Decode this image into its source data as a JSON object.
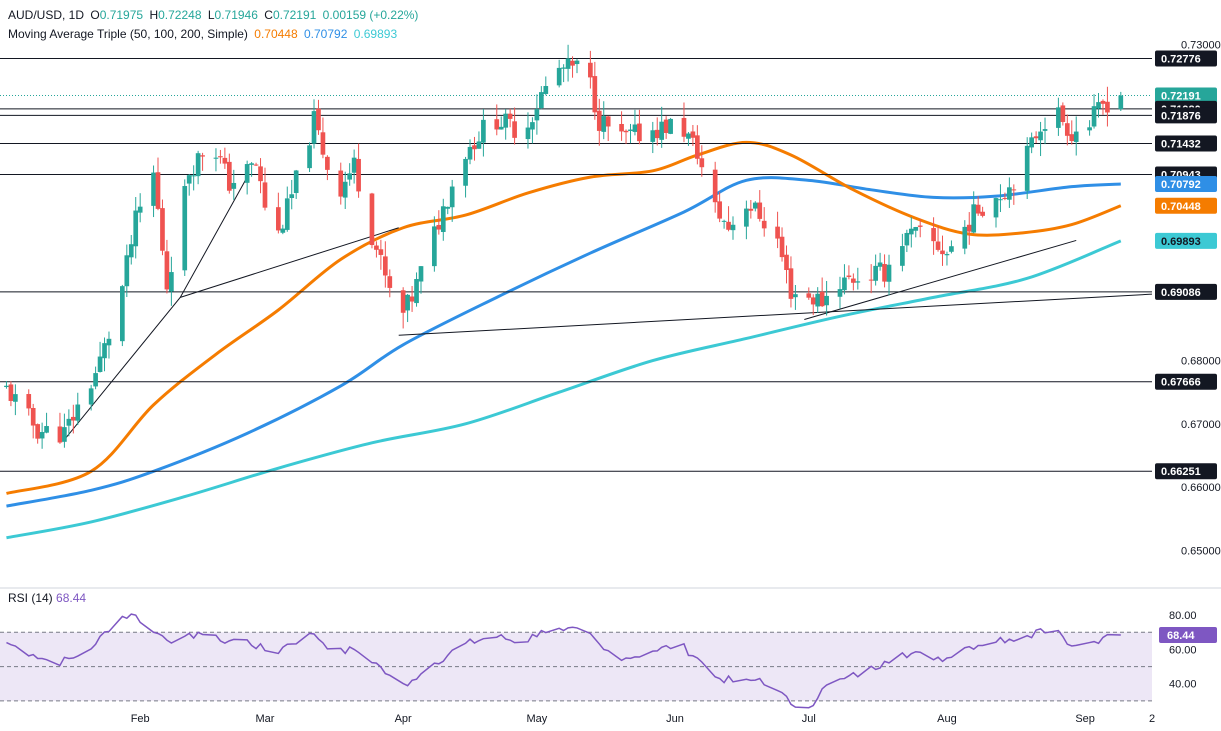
{
  "header": {
    "symbol": "AUD/USD, 1D",
    "open_label": "O",
    "open": "0.71975",
    "high_label": "H",
    "high": "0.72248",
    "low_label": "L",
    "low": "0.71946",
    "close_label": "C",
    "close": "0.72191",
    "change": "0.00159 (+0.22%)",
    "ma_title": "Moving Average Triple (50, 100, 200, Simple)",
    "ma50_value": "0.70448",
    "ma100_value": "0.70792",
    "ma200_value": "0.69893",
    "rsi_title": "RSI (14)",
    "rsi_value": "68.44"
  },
  "colors": {
    "up": "#26a69a",
    "down": "#ef5350",
    "ma50": "#f57c00",
    "ma100": "#2f8fe6",
    "ma200": "#3cc9d4",
    "rsi": "#7e57c2",
    "rsi_band": "#ede7f6",
    "last_price": "#26a69a"
  },
  "chart_data": {
    "type": "candlestick",
    "ylim": [
      0.645,
      0.731
    ],
    "x_ticks": [
      "Feb",
      "Mar",
      "Apr",
      "May",
      "Jun",
      "Jul",
      "Aug",
      "Sep",
      "2"
    ],
    "y_ticks": [
      "0.73000",
      "0.68000",
      "0.67000",
      "0.66000",
      "0.65000"
    ],
    "price_labels": [
      {
        "value": 0.72776,
        "text": "0.72776",
        "style": "dark"
      },
      {
        "value": 0.72191,
        "text": "0.72191",
        "style": "last"
      },
      {
        "value": 0.7198,
        "text": "0.71980",
        "style": "dark"
      },
      {
        "value": 0.71876,
        "text": "0.71876",
        "style": "dark"
      },
      {
        "value": 0.71432,
        "text": "0.71432",
        "style": "dark"
      },
      {
        "value": 0.70943,
        "text": "0.70943",
        "style": "dark"
      },
      {
        "value": 0.70792,
        "text": "0.70792",
        "style": "ma100"
      },
      {
        "value": 0.70448,
        "text": "0.70448",
        "style": "ma50"
      },
      {
        "value": 0.69893,
        "text": "0.69893",
        "style": "ma200"
      },
      {
        "value": 0.69086,
        "text": "0.69086",
        "style": "dark"
      },
      {
        "value": 0.67666,
        "text": "0.67666",
        "style": "dark"
      },
      {
        "value": 0.66251,
        "text": "0.66251",
        "style": "dark"
      }
    ],
    "close_path": [
      [
        "Jan 02",
        0.6755
      ],
      [
        "Jan 09",
        0.669
      ],
      [
        "Jan 15",
        0.6685
      ],
      [
        "Jan 22",
        0.678
      ],
      [
        "Jan 27",
        0.688
      ],
      [
        "Jan 31",
        0.702
      ],
      [
        "Feb 04",
        0.7095
      ],
      [
        "Feb 07",
        0.692
      ],
      [
        "Feb 12",
        0.71
      ],
      [
        "Feb 17",
        0.715
      ],
      [
        "Feb 21",
        0.708
      ],
      [
        "Feb 27",
        0.711
      ],
      [
        "Mar 03",
        0.698
      ],
      [
        "Mar 07",
        0.706
      ],
      [
        "Mar 12",
        0.718
      ],
      [
        "Mar 17",
        0.706
      ],
      [
        "Mar 21",
        0.711
      ],
      [
        "Mar 25",
        0.7
      ],
      [
        "Mar 31",
        0.686
      ],
      [
        "Apr 03",
        0.69
      ],
      [
        "Apr 08",
        0.7
      ],
      [
        "Apr 14",
        0.712
      ],
      [
        "Apr 21",
        0.7185
      ],
      [
        "Apr 28",
        0.716
      ],
      [
        "May 02",
        0.722
      ],
      [
        "May 06",
        0.726
      ],
      [
        "May 12",
        0.7265
      ],
      [
        "May 15",
        0.718
      ],
      [
        "May 20",
        0.715
      ],
      [
        "May 27",
        0.7165
      ],
      [
        "Jun 02",
        0.7175
      ],
      [
        "Jun 06",
        0.713
      ],
      [
        "Jun 09",
        0.705
      ],
      [
        "Jun 13",
        0.701
      ],
      [
        "Jun 17",
        0.705
      ],
      [
        "Jun 20",
        0.703
      ],
      [
        "Jun 24",
        0.699
      ],
      [
        "Jun 27",
        0.691
      ],
      [
        "Jul 01",
        0.69
      ],
      [
        "Jul 04",
        0.6895
      ],
      [
        "Jul 08",
        0.6925
      ],
      [
        "Jul 14",
        0.6935
      ],
      [
        "Jul 18",
        0.694
      ],
      [
        "Jul 22",
        0.699
      ],
      [
        "Jul 25",
        0.7
      ],
      [
        "Jul 29",
        0.6985
      ],
      [
        "Aug 01",
        0.697
      ],
      [
        "Aug 05",
        0.701
      ],
      [
        "Aug 08",
        0.704
      ],
      [
        "Aug 12",
        0.706
      ],
      [
        "Aug 15",
        0.7075
      ],
      [
        "Aug 19",
        0.7125
      ],
      [
        "Aug 22",
        0.7175
      ],
      [
        "Aug 26",
        0.719
      ],
      [
        "Aug 29",
        0.716
      ],
      [
        "Sep 02",
        0.7175
      ],
      [
        "Sep 05",
        0.7205
      ],
      [
        "Sep 09",
        0.72191
      ]
    ],
    "last_candle": {
      "date": "Sep 09",
      "open": 0.71975,
      "high": 0.72248,
      "low": 0.71946,
      "close": 0.72191
    },
    "horizontal_levels": [
      0.72776,
      0.7198,
      0.71876,
      0.71432,
      0.70943,
      0.69086,
      0.67666,
      0.66251
    ],
    "ma50": [
      [
        "Jan 02",
        0.659
      ],
      [
        "Jan 21",
        0.6625
      ],
      [
        "Feb 04",
        0.673
      ],
      [
        "Feb 18",
        0.681
      ],
      [
        "Mar 04",
        0.688
      ],
      [
        "Mar 18",
        0.696
      ],
      [
        "Apr 01",
        0.701
      ],
      [
        "Apr 15",
        0.703
      ],
      [
        "Apr 29",
        0.7065
      ],
      [
        "May 13",
        0.709
      ],
      [
        "May 27",
        0.71
      ],
      [
        "Jun 06",
        0.7125
      ],
      [
        "Jun 17",
        0.7145
      ],
      [
        "Jun 27",
        0.7125
      ],
      [
        "Jul 11",
        0.707
      ],
      [
        "Jul 25",
        0.7025
      ],
      [
        "Aug 06",
        0.7
      ],
      [
        "Aug 18",
        0.7002
      ],
      [
        "Aug 29",
        0.7015
      ],
      [
        "Sep 09",
        0.70448
      ]
    ],
    "ma100": [
      [
        "Jan 02",
        0.657
      ],
      [
        "Jan 21",
        0.6595
      ],
      [
        "Feb 04",
        0.6625
      ],
      [
        "Feb 25",
        0.6685
      ],
      [
        "Mar 18",
        0.676
      ],
      [
        "Apr 01",
        0.6825
      ],
      [
        "Apr 22",
        0.69
      ],
      [
        "May 13",
        0.697
      ],
      [
        "Jun 03",
        0.7035
      ],
      [
        "Jun 17",
        0.7085
      ],
      [
        "Jul 01",
        0.7085
      ],
      [
        "Jul 15",
        0.707
      ],
      [
        "Jul 29",
        0.7058
      ],
      [
        "Aug 12",
        0.706
      ],
      [
        "Aug 29",
        0.7075
      ],
      [
        "Sep 09",
        0.70792
      ]
    ],
    "ma200": [
      [
        "Jan 02",
        0.652
      ],
      [
        "Jan 21",
        0.6545
      ],
      [
        "Feb 11",
        0.6585
      ],
      [
        "Mar 04",
        0.663
      ],
      [
        "Mar 25",
        0.667
      ],
      [
        "Apr 15",
        0.67
      ],
      [
        "May 06",
        0.675
      ],
      [
        "May 27",
        0.68
      ],
      [
        "Jun 17",
        0.6835
      ],
      [
        "Jul 08",
        0.687
      ],
      [
        "Jul 29",
        0.69
      ],
      [
        "Aug 19",
        0.693
      ],
      [
        "Sep 09",
        0.69893
      ]
    ],
    "trendlines": [
      [
        [
          "Jan 15",
          0.6675
        ],
        [
          "Feb 10",
          0.69
        ],
        [
          "Feb 25",
          0.709
        ]
      ],
      [
        [
          "Feb 10",
          0.69
        ],
        [
          "Mar 31",
          0.701
        ]
      ],
      [
        [
          "Mar 31",
          0.684
        ],
        [
          "Sep 16",
          0.6905
        ]
      ],
      [
        [
          "Jun 30",
          0.6865
        ],
        [
          "Aug 30",
          0.699
        ]
      ]
    ],
    "rsi": {
      "ylim": [
        20,
        90
      ],
      "y_ticks": [
        80,
        60,
        40
      ],
      "levels": [
        70,
        50,
        30
      ],
      "values": [
        [
          "Jan 02",
          64
        ],
        [
          "Jan 08",
          57
        ],
        [
          "Jan 13",
          52
        ],
        [
          "Jan 17",
          55
        ],
        [
          "Jan 22",
          63
        ],
        [
          "Jan 27",
          79
        ],
        [
          "Jan 31",
          80
        ],
        [
          "Feb 04",
          70
        ],
        [
          "Feb 10",
          64
        ],
        [
          "Feb 14",
          70
        ],
        [
          "Feb 19",
          65
        ],
        [
          "Feb 24",
          66
        ],
        [
          "Mar 03",
          57
        ],
        [
          "Mar 06",
          63
        ],
        [
          "Mar 12",
          69
        ],
        [
          "Mar 17",
          58
        ],
        [
          "Mar 21",
          60
        ],
        [
          "Mar 26",
          52
        ],
        [
          "Mar 31",
          38
        ],
        [
          "Apr 03",
          42
        ],
        [
          "Apr 08",
          52
        ],
        [
          "Apr 14",
          62
        ],
        [
          "Apr 21",
          68
        ],
        [
          "Apr 28",
          64
        ],
        [
          "May 02",
          71
        ],
        [
          "May 07",
          71
        ],
        [
          "May 12",
          70
        ],
        [
          "May 16",
          60
        ],
        [
          "May 21",
          55
        ],
        [
          "May 27",
          59
        ],
        [
          "Jun 02",
          63
        ],
        [
          "Jun 06",
          55
        ],
        [
          "Jun 10",
          44
        ],
        [
          "Jun 16",
          40
        ],
        [
          "Jun 20",
          43
        ],
        [
          "Jun 24",
          36
        ],
        [
          "Jun 27",
          28
        ],
        [
          "Jul 01",
          26
        ],
        [
          "Jul 04",
          37
        ],
        [
          "Jul 09",
          43
        ],
        [
          "Jul 14",
          47
        ],
        [
          "Jul 18",
          53
        ],
        [
          "Jul 22",
          58
        ],
        [
          "Jul 28",
          56
        ],
        [
          "Aug 01",
          55
        ],
        [
          "Aug 05",
          61
        ],
        [
          "Aug 11",
          65
        ],
        [
          "Aug 15",
          66
        ],
        [
          "Aug 19",
          68
        ],
        [
          "Aug 22",
          72
        ],
        [
          "Aug 26",
          71
        ],
        [
          "Aug 29",
          62
        ],
        [
          "Sep 02",
          64
        ],
        [
          "Sep 05",
          67
        ],
        [
          "Sep 09",
          68.44
        ]
      ]
    }
  }
}
